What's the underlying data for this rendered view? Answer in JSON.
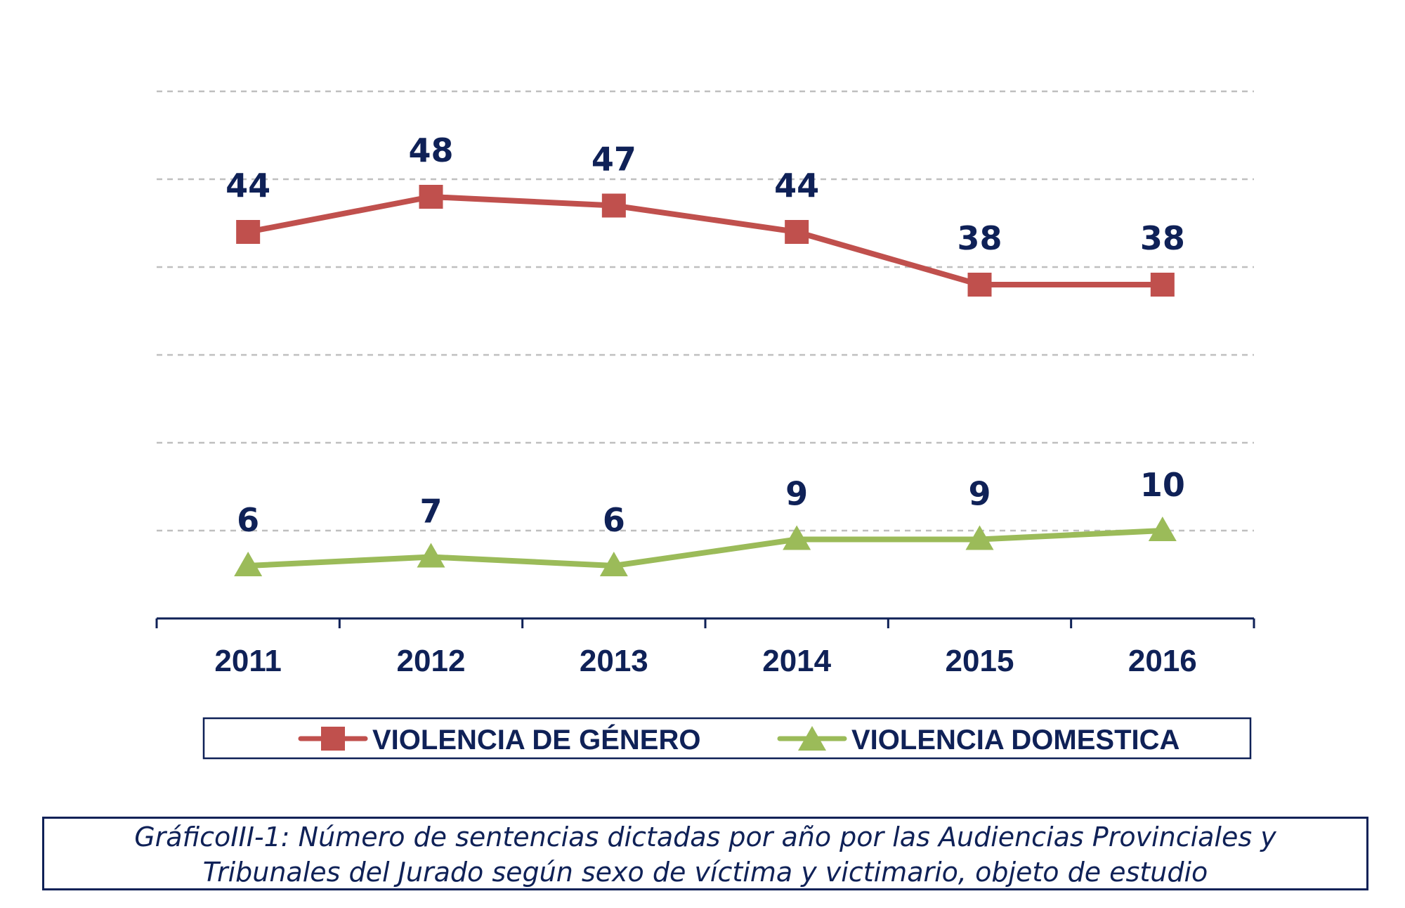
{
  "chart_data": {
    "type": "line",
    "title": "",
    "categories": [
      "2011",
      "2012",
      "2013",
      "2014",
      "2015",
      "2016"
    ],
    "ylim": [
      0,
      60
    ],
    "grid": true,
    "legend_position": "bottom",
    "series": [
      {
        "name": "VIOLENCIA DE GÉNERO",
        "values": [
          44,
          48,
          47,
          44,
          38,
          38
        ],
        "color": "#c0504d",
        "marker": "square"
      },
      {
        "name": "VIOLENCIA DOMESTICA",
        "values": [
          6,
          7,
          6,
          9,
          9,
          10
        ],
        "color": "#9bbb59",
        "marker": "triangle"
      }
    ]
  },
  "caption": {
    "line1": "GráficoIII-1: Número de sentencias dictadas por año por las Audiencias Provinciales y",
    "line2": "Tribunales del Jurado según sexo de víctima y victimario, objeto de estudio"
  },
  "colors": {
    "text": "#0f2157",
    "grid": "#bfbfbf",
    "axis": "#0f2157"
  }
}
